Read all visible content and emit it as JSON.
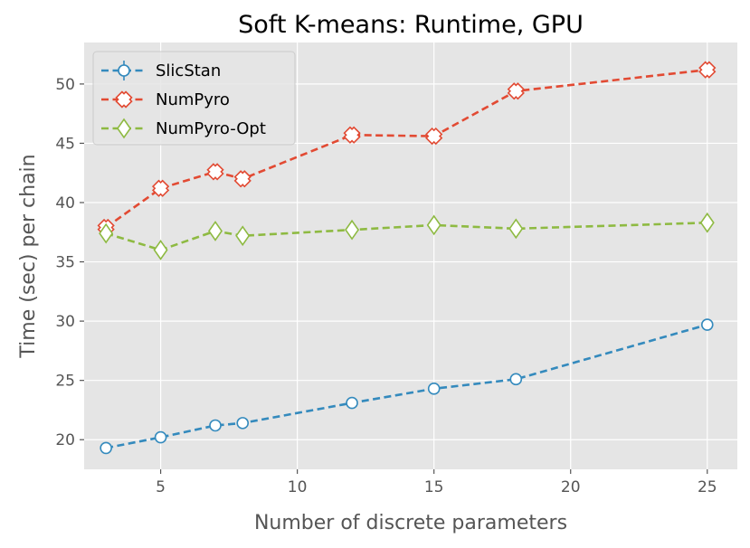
{
  "chart_data": {
    "type": "line",
    "title": "Soft K-means: Runtime, GPU",
    "xlabel": "Number of discrete parameters",
    "ylabel": "Time (sec) per chain",
    "xlim": [
      2.2,
      26.1
    ],
    "ylim": [
      17.5,
      53.5
    ],
    "xticks": [
      5,
      10,
      15,
      20,
      25
    ],
    "yticks": [
      20,
      25,
      30,
      35,
      40,
      45,
      50
    ],
    "grid": true,
    "legend_position": "top-left",
    "x": [
      3,
      5,
      7,
      8,
      12,
      15,
      18,
      25
    ],
    "series": [
      {
        "name": "SlicStan",
        "color": "#348ABD",
        "marker": "circle",
        "values": [
          19.3,
          20.2,
          21.2,
          21.4,
          23.1,
          24.3,
          25.1,
          29.7
        ]
      },
      {
        "name": "NumPyro",
        "color": "#E24A33",
        "marker": "x",
        "values": [
          37.9,
          41.2,
          42.6,
          42.0,
          45.7,
          45.6,
          49.4,
          51.2
        ]
      },
      {
        "name": "NumPyro-Opt",
        "color": "#8EBA42",
        "marker": "diamond",
        "values": [
          37.4,
          36.0,
          37.6,
          37.2,
          37.7,
          38.1,
          37.8,
          38.3
        ]
      }
    ]
  }
}
